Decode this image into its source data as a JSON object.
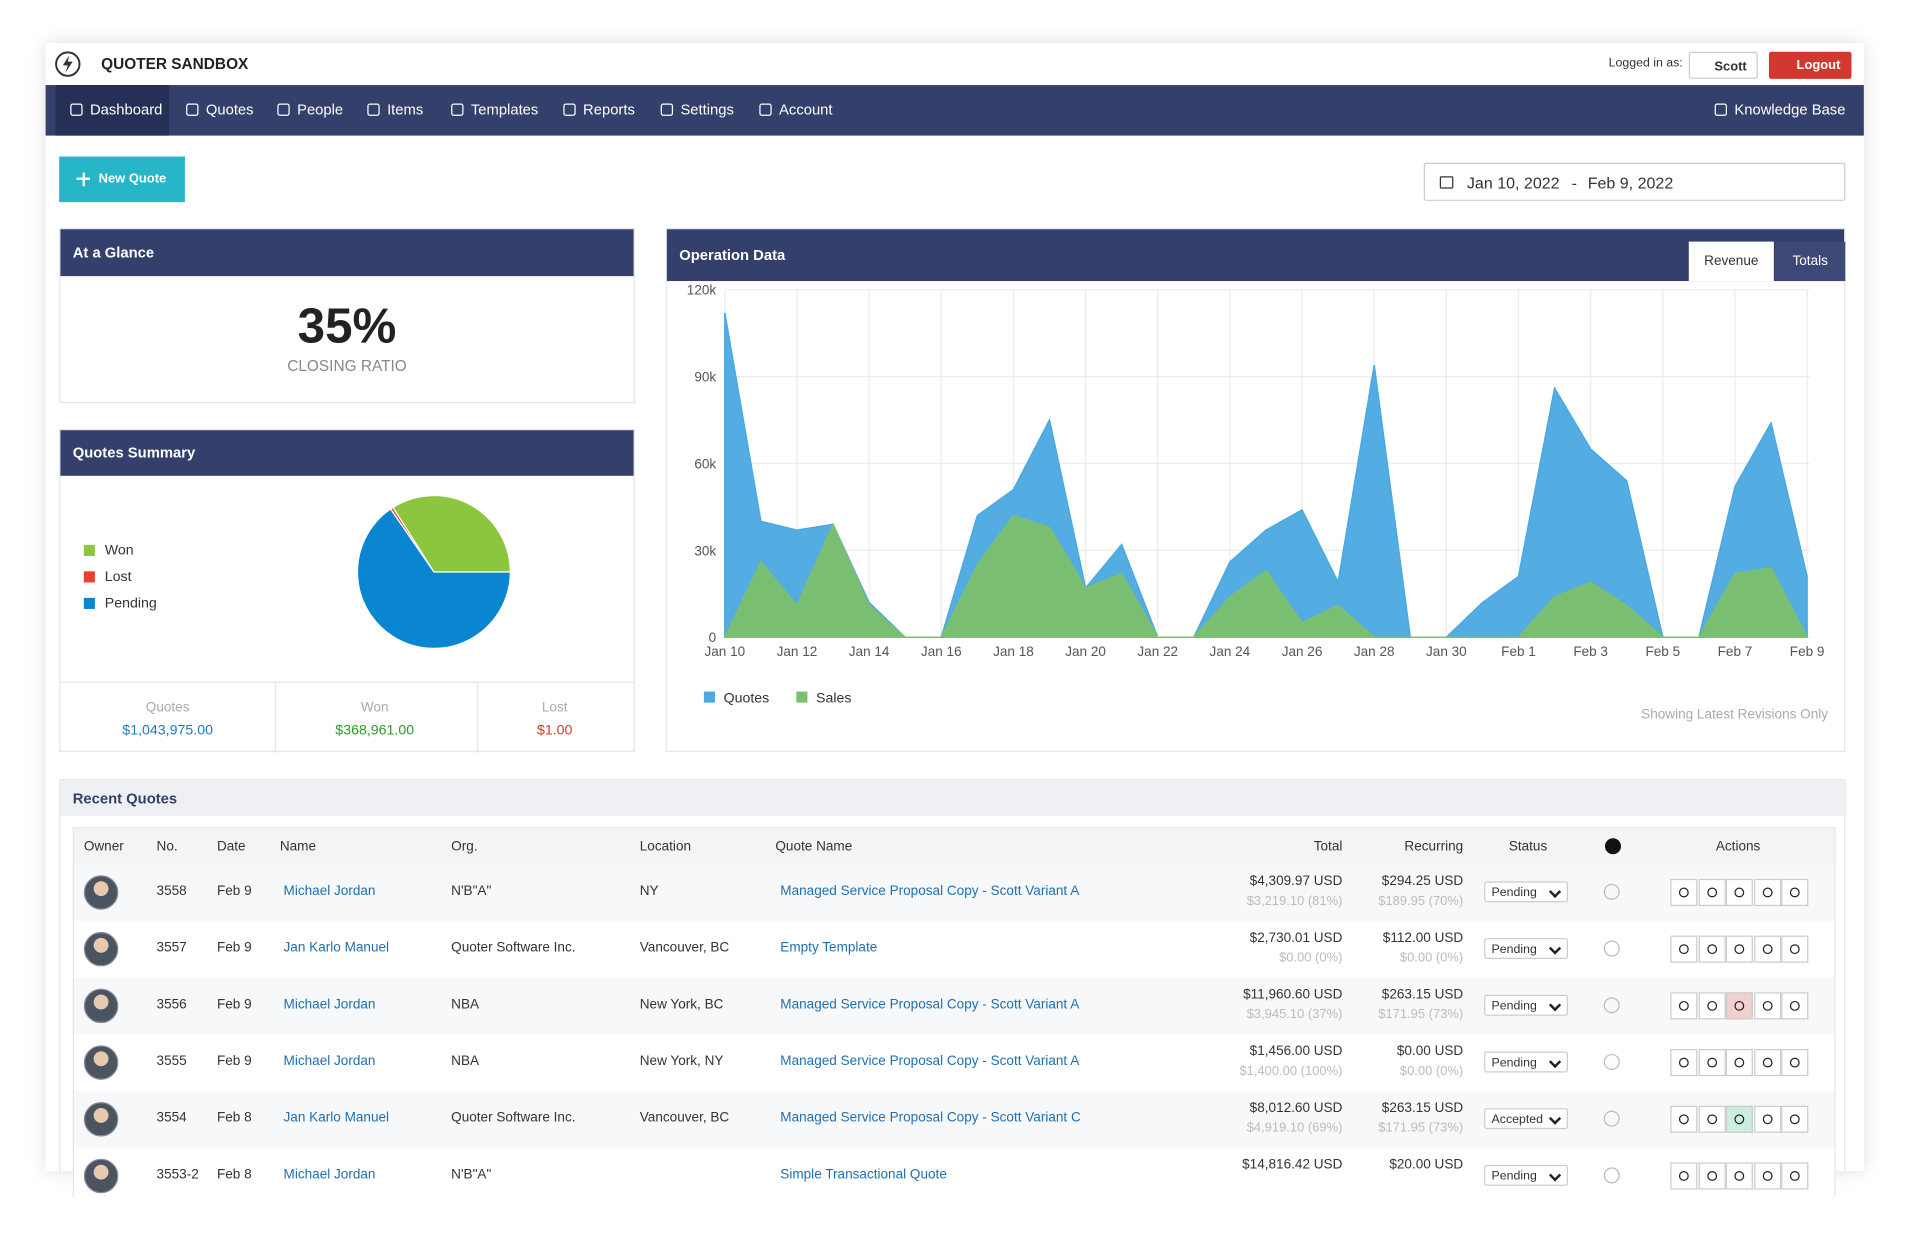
{
  "header": {
    "brand": "QUOTER SANDBOX",
    "logged_in": "Logged in as:",
    "user": "Scott",
    "logout": "Logout"
  },
  "nav": {
    "items": [
      "Dashboard",
      "Quotes",
      "People",
      "Items",
      "Templates",
      "Reports",
      "Settings",
      "Account"
    ],
    "help": "Knowledge Base"
  },
  "new_quote": "New Quote",
  "date_range": {
    "start": "Jan 10, 2022",
    "separator": "-",
    "end": "Feb 9, 2022"
  },
  "glance": {
    "title": "At a Glance",
    "value": "35%",
    "label": "CLOSING RATIO"
  },
  "summary": {
    "title": "Quotes Summary",
    "totals": [
      {
        "label": "Quotes",
        "value": "$1,043,975.00"
      },
      {
        "label": "Won",
        "value": "$368,961.00"
      },
      {
        "label": "Lost",
        "value": "$1.00"
      }
    ]
  },
  "operation": {
    "title": "Operation Data",
    "tabs": [
      "Revenue",
      "Totals"
    ],
    "note": "Showing Latest Revisions Only"
  },
  "chart_data": [
    {
      "type": "pie",
      "categories": [
        "Won",
        "Lost",
        "Pending"
      ],
      "values": [
        34,
        0.6,
        65.4
      ],
      "colors": [
        "#8cc63f",
        "#e8412f",
        "#0a86d1"
      ]
    },
    {
      "type": "area",
      "categories": [
        "Jan 10",
        null,
        "Jan 12",
        null,
        "Jan 14",
        null,
        "Jan 16",
        null,
        "Jan 18",
        null,
        "Jan 20",
        null,
        "Jan 22",
        null,
        "Jan 24",
        null,
        "Jan 26",
        null,
        "Jan 28",
        null,
        "Jan 30",
        null,
        "Feb 1",
        null,
        "Feb 3",
        null,
        "Feb 5",
        null,
        "Feb 7",
        null,
        "Feb 9"
      ],
      "series": [
        {
          "name": "Quotes",
          "color": "#4aa9e0",
          "values": [
            112000,
            40000,
            37000,
            39000,
            12000,
            0,
            0,
            42000,
            51000,
            75000,
            17000,
            32000,
            0,
            0,
            26000,
            37000,
            44000,
            19000,
            94000,
            0,
            0,
            12000,
            21000,
            86000,
            65000,
            54000,
            0,
            0,
            52000,
            74000,
            21000
          ]
        },
        {
          "name": "Sales",
          "color": "#7cbf6c",
          "values": [
            0,
            26000,
            11000,
            39000,
            11000,
            0,
            0,
            25000,
            42000,
            38000,
            17000,
            22000,
            0,
            0,
            14000,
            23000,
            5000,
            11000,
            0,
            0,
            0,
            0,
            0,
            14000,
            19000,
            11000,
            0,
            0,
            22000,
            24000,
            0
          ]
        }
      ],
      "ylim": [
        0,
        120000
      ],
      "yticks": [
        0,
        {
          "value": 30000,
          "label": "30k"
        },
        {
          "value": 60000,
          "label": "60k"
        },
        {
          "value": 90000,
          "label": "90k"
        },
        {
          "value": 120000,
          "label": "120k"
        }
      ],
      "grid": true
    }
  ],
  "recent": {
    "title": "Recent Quotes",
    "columns": [
      "Owner",
      "No.",
      "Date",
      "Name",
      "Org.",
      "Location",
      "Quote Name",
      "Total",
      "Recurring",
      "Status",
      "Actions"
    ],
    "rows": [
      {
        "no": "3558",
        "date": "Feb 9",
        "name": "Michael Jordan",
        "org": "N'B\"A\"",
        "location": "NY",
        "quote_name": "Managed Service Proposal Copy - Scott Variant A",
        "total": "$4,309.97 USD",
        "total_detail": "$3,219.10 (81%)",
        "recurring": "$294.25 USD",
        "recurring_detail": "$189.95 (70%)",
        "status": "Pending"
      },
      {
        "no": "3557",
        "date": "Feb 9",
        "name": "Jan Karlo Manuel",
        "org": "Quoter Software Inc.",
        "location": "Vancouver, BC",
        "quote_name": "Empty Template",
        "total": "$2,730.01 USD",
        "total_detail": "$0.00 (0%)",
        "recurring": "$112.00 USD",
        "recurring_detail": "$0.00 (0%)",
        "status": "Pending"
      },
      {
        "no": "3556",
        "date": "Feb 9",
        "name": "Michael Jordan",
        "org": "NBA",
        "location": "New York, BC",
        "quote_name": "Managed Service Proposal Copy - Scott Variant A",
        "total": "$11,960.60 USD",
        "total_detail": "$3,945.10 (37%)",
        "recurring": "$263.15 USD",
        "recurring_detail": "$171.95 (73%)",
        "status": "Pending"
      },
      {
        "no": "3555",
        "date": "Feb 9",
        "name": "Michael Jordan",
        "org": "NBA",
        "location": "New York, NY",
        "quote_name": "Managed Service Proposal Copy - Scott Variant A",
        "total": "$1,456.00 USD",
        "total_detail": "$1,400.00 (100%)",
        "recurring": "$0.00 USD",
        "recurring_detail": "$0.00 (0%)",
        "status": "Pending"
      },
      {
        "no": "3554",
        "date": "Feb 8",
        "name": "Jan Karlo Manuel",
        "org": "Quoter Software Inc.",
        "location": "Vancouver, BC",
        "quote_name": "Managed Service Proposal Copy - Scott Variant C",
        "total": "$8,012.60 USD",
        "total_detail": "$4,919.10 (69%)",
        "recurring": "$263.15 USD",
        "recurring_detail": "$171.95 (73%)",
        "status": "Accepted"
      },
      {
        "no": "3553-2",
        "date": "Feb 8",
        "name": "Michael Jordan",
        "org": "N'B\"A\"",
        "quote_name": "Simple Transactional Quote",
        "total": "$14,816.42 USD",
        "recurring": "$20.00 USD",
        "status": "Pending"
      }
    ]
  }
}
